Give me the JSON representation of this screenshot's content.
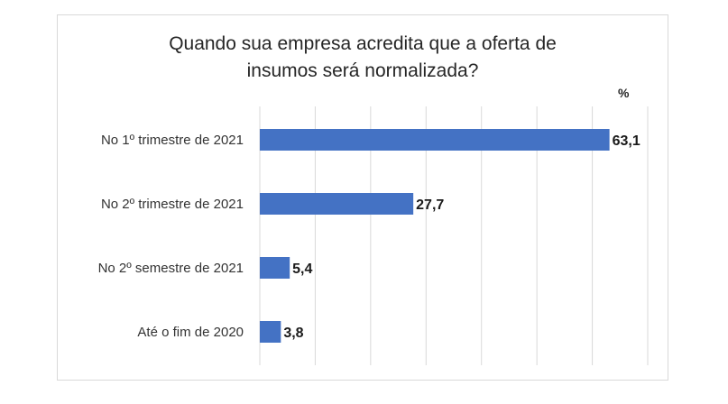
{
  "chart_data": {
    "type": "bar",
    "orientation": "horizontal",
    "title": "Quando sua empresa acredita que a oferta de\ninsumos será normalizada?",
    "unit": "%",
    "categories": [
      "No 1º trimestre de 2021",
      "No 2º trimestre de 2021",
      "No 2º semestre de 2021",
      "Até o fim de 2020"
    ],
    "values": [
      63.1,
      27.7,
      5.4,
      3.8
    ],
    "value_labels": [
      "63,1",
      "27,7",
      "5,4",
      "3,8"
    ],
    "xlim": [
      0,
      70
    ],
    "grid": true,
    "bar_color": "#4472c4",
    "grid_color": "#d9d9d9"
  }
}
